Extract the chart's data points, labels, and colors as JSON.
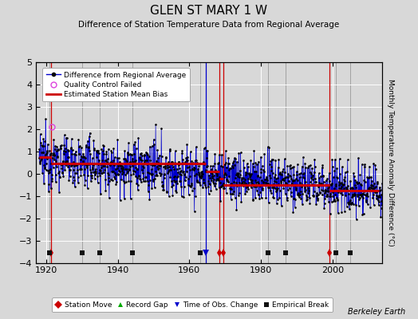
{
  "title": "GLEN ST MARY 1 W",
  "subtitle": "Difference of Station Temperature Data from Regional Average",
  "ylabel": "Monthly Temperature Anomaly Difference (°C)",
  "credit": "Berkeley Earth",
  "xlim": [
    1917,
    2014
  ],
  "ylim": [
    -4,
    5
  ],
  "yticks": [
    -4,
    -3,
    -2,
    -1,
    0,
    1,
    2,
    3,
    4,
    5
  ],
  "xticks": [
    1920,
    1940,
    1960,
    1980,
    2000
  ],
  "bg_color": "#d8d8d8",
  "plot_bg_color": "#d8d8d8",
  "line_color": "#0000cc",
  "bias_color": "#cc0000",
  "grid_color": "#ffffff",
  "station_move_color": "#cc0000",
  "record_gap_color": "#00aa00",
  "tobs_color": "#0000cc",
  "emp_break_color": "#111111",
  "station_moves": [
    1921.3,
    1968.3,
    1969.5,
    1999.2
  ],
  "record_gaps": [],
  "tobs_changes": [
    1964.5
  ],
  "emp_breaks": [
    1921,
    1930,
    1935,
    1944,
    1963,
    1982,
    1987,
    2001,
    2005
  ],
  "qc_failed_x": [
    1921.5
  ],
  "qc_failed_y": [
    2.1
  ],
  "bias_segments": [
    {
      "x": [
        1918,
        1921.3
      ],
      "y": [
        0.75,
        0.75
      ]
    },
    {
      "x": [
        1921.3,
        1964.5
      ],
      "y": [
        0.45,
        0.45
      ]
    },
    {
      "x": [
        1964.5,
        1968.3
      ],
      "y": [
        0.1,
        0.1
      ]
    },
    {
      "x": [
        1968.3,
        1969.5
      ],
      "y": [
        -0.2,
        -0.2
      ]
    },
    {
      "x": [
        1969.5,
        1999.2
      ],
      "y": [
        -0.5,
        -0.5
      ]
    },
    {
      "x": [
        1999.2,
        2013
      ],
      "y": [
        -0.75,
        -0.75
      ]
    }
  ]
}
